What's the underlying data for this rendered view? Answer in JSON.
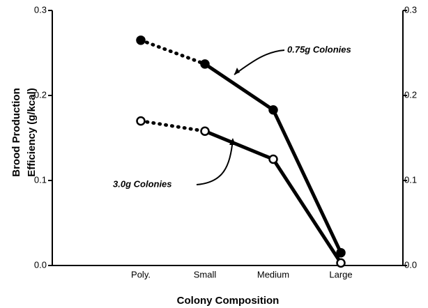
{
  "chart_data": {
    "type": "line",
    "y_label": [
      "Brood Production",
      "Efficiency   (g/kcal)"
    ],
    "x_label": "Colony Composition",
    "categories": [
      "Poly.",
      "Small",
      "Medium",
      "Large"
    ],
    "series": [
      {
        "name": "0.75g Colonies",
        "color": "#000000",
        "marker": "filled",
        "segment_styles": [
          "dotted",
          "solid",
          "solid"
        ],
        "values": [
          0.265,
          0.237,
          0.183,
          0.015
        ]
      },
      {
        "name": "3.0g Colonies",
        "color": "#000000",
        "marker": "open",
        "segment_styles": [
          "dotted",
          "solid",
          "solid"
        ],
        "values": [
          0.17,
          0.158,
          0.125,
          0.003
        ]
      }
    ],
    "ylim": [
      0,
      0.3
    ],
    "yticks": [
      {
        "value": 0,
        "label": "0.0"
      },
      0.1,
      0.2,
      0.3
    ],
    "right_axis": true,
    "grid": false
  }
}
